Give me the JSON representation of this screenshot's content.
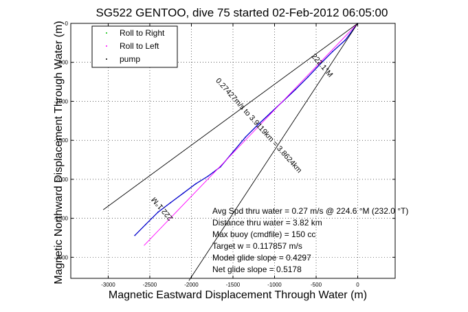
{
  "chart_data": {
    "type": "line",
    "title": "SG522 GENTOO, dive 75 started 02-Feb-2012 06:05:00",
    "xlabel": "Magnetic Eastward Displacement Through Water (m)",
    "ylabel": "Magnetic Northward Displacement Through Water (m)",
    "xlim": [
      -3450,
      450
    ],
    "ylim": [
      -3270,
      0
    ],
    "xticks": [
      -3000,
      -2500,
      -2000,
      -1500,
      -1000,
      -500,
      0
    ],
    "yticks": [
      0,
      -500,
      -1000,
      -1500,
      -2000,
      -2500,
      -3000
    ],
    "x_tick_labels": [
      "-3000",
      "-2500",
      "-2000",
      "-1500",
      "-1000",
      "-500",
      "0"
    ],
    "y_tick_labels": [
      "0",
      "-500",
      "-1000",
      "-1500",
      "-2000",
      "-2500",
      "-3000"
    ],
    "grid": true,
    "legend_position": "top-left",
    "legend": [
      {
        "label": "Roll to Right",
        "color": "#00c000"
      },
      {
        "label": "Roll to Left",
        "color": "#ff00ff"
      },
      {
        "label": "pump",
        "color": "#000000"
      }
    ],
    "series": [
      {
        "name": "track",
        "color": "#0000cc",
        "marker": "dots",
        "x": [
          0,
          -150,
          -300,
          -450,
          -600,
          -750,
          -900,
          -1050,
          -1200,
          -1350,
          -1500,
          -1650,
          -1800,
          -1950,
          -2100,
          -2250,
          -2400,
          -2550,
          -2680
        ],
        "y": [
          0,
          -215,
          -360,
          -520,
          -690,
          -850,
          -1000,
          -1150,
          -1300,
          -1460,
          -1650,
          -1840,
          -1960,
          -2060,
          -2180,
          -2300,
          -2420,
          -2580,
          -2720
        ]
      },
      {
        "name": "heading line",
        "color": "#ff00ff",
        "x": [
          0,
          -2570
        ],
        "y": [
          0,
          -2850
        ]
      },
      {
        "name": "cone upper",
        "color": "#000000",
        "x": [
          0,
          -3060
        ],
        "y": [
          0,
          -2390
        ]
      },
      {
        "name": "cone lower",
        "color": "#000000",
        "x": [
          0,
          -2030
        ],
        "y": [
          0,
          -3300
        ]
      }
    ],
    "annotations": [
      {
        "text": "222.1°M",
        "x": -450,
        "y": -560,
        "angle": 49
      },
      {
        "text": "222.1°M",
        "x": -2330,
        "y": -2360,
        "angle": 229
      },
      {
        "text": "0.27427m/s to 3.9119km = 3.8624km",
        "x": -1210,
        "y": -1330,
        "angle": 48
      }
    ],
    "notes": [
      "Avg Spd thru water =  0.27 m/s @ 224.6   °M (232.0 °T)",
      "Distance thru water =  3.82 km",
      "Max buoy (cmdfile) = 150 cc",
      "Target w = 0.117857 m/s",
      "Model glide slope = 0.4297",
      "Net glide slope = 0.5178"
    ]
  }
}
